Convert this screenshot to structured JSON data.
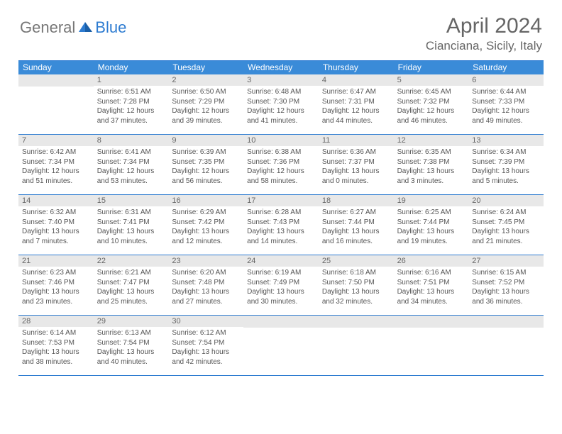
{
  "logo": {
    "general": "General",
    "blue": "Blue"
  },
  "title": {
    "month": "April 2024",
    "location": "Cianciana, Sicily, Italy"
  },
  "weekdays": [
    "Sunday",
    "Monday",
    "Tuesday",
    "Wednesday",
    "Thursday",
    "Friday",
    "Saturday"
  ],
  "colors": {
    "header_bg": "#3a8bd8",
    "border": "#2e7cd1",
    "daynum_bg": "#e8e8e8",
    "text": "#555555"
  },
  "weeks": [
    [
      {
        "n": "",
        "sr": "",
        "ss": "",
        "dl": ""
      },
      {
        "n": "1",
        "sr": "Sunrise: 6:51 AM",
        "ss": "Sunset: 7:28 PM",
        "dl": "Daylight: 12 hours and 37 minutes."
      },
      {
        "n": "2",
        "sr": "Sunrise: 6:50 AM",
        "ss": "Sunset: 7:29 PM",
        "dl": "Daylight: 12 hours and 39 minutes."
      },
      {
        "n": "3",
        "sr": "Sunrise: 6:48 AM",
        "ss": "Sunset: 7:30 PM",
        "dl": "Daylight: 12 hours and 41 minutes."
      },
      {
        "n": "4",
        "sr": "Sunrise: 6:47 AM",
        "ss": "Sunset: 7:31 PM",
        "dl": "Daylight: 12 hours and 44 minutes."
      },
      {
        "n": "5",
        "sr": "Sunrise: 6:45 AM",
        "ss": "Sunset: 7:32 PM",
        "dl": "Daylight: 12 hours and 46 minutes."
      },
      {
        "n": "6",
        "sr": "Sunrise: 6:44 AM",
        "ss": "Sunset: 7:33 PM",
        "dl": "Daylight: 12 hours and 49 minutes."
      }
    ],
    [
      {
        "n": "7",
        "sr": "Sunrise: 6:42 AM",
        "ss": "Sunset: 7:34 PM",
        "dl": "Daylight: 12 hours and 51 minutes."
      },
      {
        "n": "8",
        "sr": "Sunrise: 6:41 AM",
        "ss": "Sunset: 7:34 PM",
        "dl": "Daylight: 12 hours and 53 minutes."
      },
      {
        "n": "9",
        "sr": "Sunrise: 6:39 AM",
        "ss": "Sunset: 7:35 PM",
        "dl": "Daylight: 12 hours and 56 minutes."
      },
      {
        "n": "10",
        "sr": "Sunrise: 6:38 AM",
        "ss": "Sunset: 7:36 PM",
        "dl": "Daylight: 12 hours and 58 minutes."
      },
      {
        "n": "11",
        "sr": "Sunrise: 6:36 AM",
        "ss": "Sunset: 7:37 PM",
        "dl": "Daylight: 13 hours and 0 minutes."
      },
      {
        "n": "12",
        "sr": "Sunrise: 6:35 AM",
        "ss": "Sunset: 7:38 PM",
        "dl": "Daylight: 13 hours and 3 minutes."
      },
      {
        "n": "13",
        "sr": "Sunrise: 6:34 AM",
        "ss": "Sunset: 7:39 PM",
        "dl": "Daylight: 13 hours and 5 minutes."
      }
    ],
    [
      {
        "n": "14",
        "sr": "Sunrise: 6:32 AM",
        "ss": "Sunset: 7:40 PM",
        "dl": "Daylight: 13 hours and 7 minutes."
      },
      {
        "n": "15",
        "sr": "Sunrise: 6:31 AM",
        "ss": "Sunset: 7:41 PM",
        "dl": "Daylight: 13 hours and 10 minutes."
      },
      {
        "n": "16",
        "sr": "Sunrise: 6:29 AM",
        "ss": "Sunset: 7:42 PM",
        "dl": "Daylight: 13 hours and 12 minutes."
      },
      {
        "n": "17",
        "sr": "Sunrise: 6:28 AM",
        "ss": "Sunset: 7:43 PM",
        "dl": "Daylight: 13 hours and 14 minutes."
      },
      {
        "n": "18",
        "sr": "Sunrise: 6:27 AM",
        "ss": "Sunset: 7:44 PM",
        "dl": "Daylight: 13 hours and 16 minutes."
      },
      {
        "n": "19",
        "sr": "Sunrise: 6:25 AM",
        "ss": "Sunset: 7:44 PM",
        "dl": "Daylight: 13 hours and 19 minutes."
      },
      {
        "n": "20",
        "sr": "Sunrise: 6:24 AM",
        "ss": "Sunset: 7:45 PM",
        "dl": "Daylight: 13 hours and 21 minutes."
      }
    ],
    [
      {
        "n": "21",
        "sr": "Sunrise: 6:23 AM",
        "ss": "Sunset: 7:46 PM",
        "dl": "Daylight: 13 hours and 23 minutes."
      },
      {
        "n": "22",
        "sr": "Sunrise: 6:21 AM",
        "ss": "Sunset: 7:47 PM",
        "dl": "Daylight: 13 hours and 25 minutes."
      },
      {
        "n": "23",
        "sr": "Sunrise: 6:20 AM",
        "ss": "Sunset: 7:48 PM",
        "dl": "Daylight: 13 hours and 27 minutes."
      },
      {
        "n": "24",
        "sr": "Sunrise: 6:19 AM",
        "ss": "Sunset: 7:49 PM",
        "dl": "Daylight: 13 hours and 30 minutes."
      },
      {
        "n": "25",
        "sr": "Sunrise: 6:18 AM",
        "ss": "Sunset: 7:50 PM",
        "dl": "Daylight: 13 hours and 32 minutes."
      },
      {
        "n": "26",
        "sr": "Sunrise: 6:16 AM",
        "ss": "Sunset: 7:51 PM",
        "dl": "Daylight: 13 hours and 34 minutes."
      },
      {
        "n": "27",
        "sr": "Sunrise: 6:15 AM",
        "ss": "Sunset: 7:52 PM",
        "dl": "Daylight: 13 hours and 36 minutes."
      }
    ],
    [
      {
        "n": "28",
        "sr": "Sunrise: 6:14 AM",
        "ss": "Sunset: 7:53 PM",
        "dl": "Daylight: 13 hours and 38 minutes."
      },
      {
        "n": "29",
        "sr": "Sunrise: 6:13 AM",
        "ss": "Sunset: 7:54 PM",
        "dl": "Daylight: 13 hours and 40 minutes."
      },
      {
        "n": "30",
        "sr": "Sunrise: 6:12 AM",
        "ss": "Sunset: 7:54 PM",
        "dl": "Daylight: 13 hours and 42 minutes."
      },
      {
        "n": "",
        "sr": "",
        "ss": "",
        "dl": ""
      },
      {
        "n": "",
        "sr": "",
        "ss": "",
        "dl": ""
      },
      {
        "n": "",
        "sr": "",
        "ss": "",
        "dl": ""
      },
      {
        "n": "",
        "sr": "",
        "ss": "",
        "dl": ""
      }
    ]
  ]
}
